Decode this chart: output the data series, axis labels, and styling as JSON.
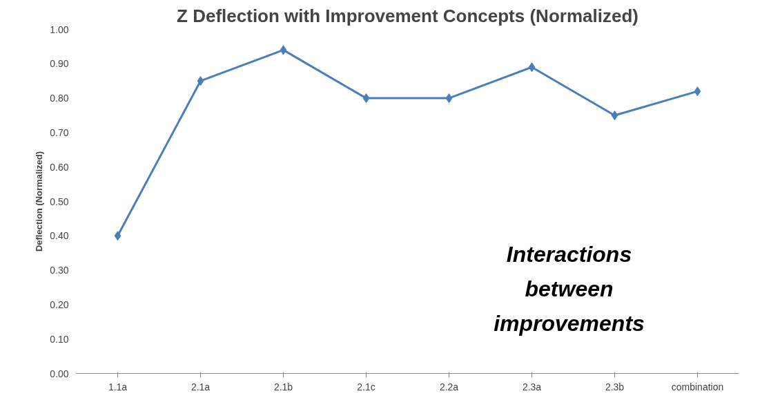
{
  "chart_data": {
    "type": "line",
    "title": "Z Deflection with Improvement Concepts (Normalized)",
    "ylabel": "Deflection (Normalized)",
    "categories": [
      "1.1a",
      "2.1a",
      "2.1b",
      "2.1c",
      "2.2a",
      "2.3a",
      "2.3b",
      "combination"
    ],
    "series": [
      {
        "color": "#4a7ebb",
        "values": [
          0.4,
          0.85,
          0.94,
          0.8,
          0.8,
          0.89,
          0.75,
          0.82
        ]
      }
    ],
    "ylim": [
      0,
      1
    ],
    "yticks": [
      {
        "value": 0,
        "label": "0.00"
      },
      {
        "value": 0.1,
        "label": "0.10"
      },
      {
        "value": 0.2,
        "label": "0.20"
      },
      {
        "value": 0.3,
        "label": "0.30"
      },
      {
        "value": 0.4,
        "label": "0.40"
      },
      {
        "value": 0.5,
        "label": "0.50"
      },
      {
        "value": 0.6,
        "label": "0.60"
      },
      {
        "value": 0.7,
        "label": "0.70"
      },
      {
        "value": 0.8,
        "label": "0.80"
      },
      {
        "value": 0.9,
        "label": "0.90"
      },
      {
        "value": 1,
        "label": "1.00"
      }
    ],
    "annotations": [
      "Interactions between improvements"
    ],
    "grid": false,
    "marker": "diamond",
    "line_style": "solid"
  }
}
